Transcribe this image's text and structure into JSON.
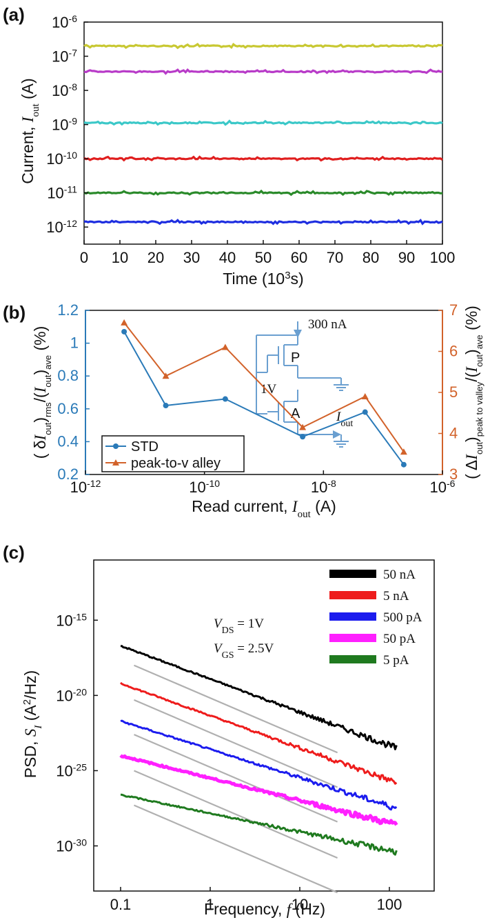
{
  "chart_data": [
    {
      "panel": "(a)",
      "type": "line",
      "ylabel_prefix": "Current, ",
      "ylabel_var": "I",
      "ylabel_sub": "out",
      "ylabel_unit": " (A)",
      "xlabel_text": "Time  (10",
      "xlabel_sup": "3",
      "xlabel_end": "s)",
      "x_ticks": [
        "0",
        "10",
        "20",
        "30",
        "40",
        "50",
        "60",
        "70",
        "80",
        "90",
        "100"
      ],
      "y_ticks": [
        "-6",
        "-7",
        "-8",
        "-9",
        "-10",
        "-11",
        "-12"
      ],
      "y_tick_base": "10",
      "xlim": [
        0,
        100
      ],
      "ylim_log10": [
        -12.5,
        -6
      ],
      "series": [
        {
          "color": "#c8c832",
          "log10_current": -6.7
        },
        {
          "color": "#b83bc8",
          "log10_current": -7.45
        },
        {
          "color": "#3bc8c8",
          "log10_current": -8.95
        },
        {
          "color": "#e01e1e",
          "log10_current": -10.0
        },
        {
          "color": "#2a8a2a",
          "log10_current": -11.0
        },
        {
          "color": "#1e2ee0",
          "log10_current": -11.85
        }
      ]
    },
    {
      "panel": "(b)",
      "type": "line",
      "xlabel_text": "Read current, ",
      "xlabel_var": "I",
      "xlabel_sub": "out",
      "xlabel_unit": " (A)",
      "x_tick_base": "10",
      "x_ticks": [
        "-12",
        "-10",
        "-8",
        "-6"
      ],
      "xlim_log10": [
        -12,
        -6
      ],
      "y_left_ticks": [
        "0.2",
        "0.4",
        "0.6",
        "0.8",
        "1",
        "1.2"
      ],
      "y_left_lim": [
        0.2,
        1.2
      ],
      "y_right_ticks": [
        "3",
        "4",
        "5",
        "6",
        "7"
      ],
      "y_right_lim": [
        3,
        7
      ],
      "ylabel_left_a": "( δ",
      "ylabel_left_b": "I",
      "ylabel_left_c": "out",
      "ylabel_left_d": ")",
      "ylabel_left_e": "rms",
      "ylabel_left_f": "/(",
      "ylabel_left_g": "I",
      "ylabel_left_h": "out",
      "ylabel_left_i": ")",
      "ylabel_left_j": "ave",
      "ylabel_left_k": " (%)",
      "ylabel_right_a": "( Δ",
      "ylabel_right_b": "I",
      "ylabel_right_c": "out",
      "ylabel_right_d": ")",
      "ylabel_right_e": "peak to valley",
      "ylabel_right_f": "/(",
      "ylabel_right_g": "I",
      "ylabel_right_h": "out",
      "ylabel_right_i": ")",
      "ylabel_right_j": "ave",
      "ylabel_right_k": " (%)",
      "left_color": "#2a7ab8",
      "right_color": "#d2622a",
      "series": [
        {
          "name": "STD",
          "axis": "left",
          "color": "#2a7ab8",
          "marker": "circle",
          "x_log10": [
            -11.35,
            -10.65,
            -9.65,
            -8.35,
            -7.3,
            -6.65
          ],
          "values": [
            1.07,
            0.62,
            0.66,
            0.43,
            0.58,
            0.26
          ]
        },
        {
          "name": "peak-to-v alley",
          "axis": "right",
          "color": "#d2622a",
          "marker": "triangle",
          "x_log10": [
            -11.35,
            -10.65,
            -9.65,
            -8.35,
            -7.3,
            -6.65
          ],
          "values": [
            6.7,
            5.4,
            6.1,
            4.15,
            4.9,
            3.55
          ]
        }
      ],
      "inset": {
        "current_label": "300 nA",
        "voltage_label": "1V",
        "p_label": "P",
        "a_label": "A",
        "out_var": "I",
        "out_sub": "out"
      }
    },
    {
      "panel": "(c)",
      "type": "line",
      "ylabel_prefix": "PSD, ",
      "ylabel_var": "S",
      "ylabel_sub": "I",
      "ylabel_unit_a": " (A",
      "ylabel_unit_sup": "2",
      "ylabel_unit_b": "/Hz)",
      "xlabel_text": "Frequency, ",
      "xlabel_var": "f",
      "xlabel_unit": " (Hz)",
      "x_ticks": [
        "0.1",
        "1",
        "10",
        "100"
      ],
      "xlim_log10": [
        -1.3,
        2.5
      ],
      "y_tick_base": "10",
      "y_ticks": [
        "-15",
        "-20",
        "-25",
        "-30"
      ],
      "ylim_log10": [
        -33,
        -11
      ],
      "annot_vds_var": "V",
      "annot_vds_sub": "DS",
      "annot_vds_val": " = 1V",
      "annot_vgs_var": "V",
      "annot_vgs_sub": "GS",
      "annot_vgs_val": " =  2.5V",
      "series": [
        {
          "name": "50 nA",
          "color": "#000000",
          "start": -16.7,
          "end": -23.5
        },
        {
          "name": "5 nA",
          "color": "#ee1c1c",
          "start": -19.2,
          "end": -25.8
        },
        {
          "name": "500 pA",
          "color": "#1c1cee",
          "start": -21.7,
          "end": -27.5
        },
        {
          "name": "50 pA",
          "color": "#ff20ff",
          "start": -24.0,
          "end": -28.6
        },
        {
          "name": "5 pA",
          "color": "#1f7a1f",
          "start": -26.6,
          "end": -30.4
        }
      ],
      "reference_lines": [
        {
          "start": -18.0,
          "end": -23.8
        },
        {
          "start": -20.3,
          "end": -26.1
        },
        {
          "start": -22.6,
          "end": -28.4
        },
        {
          "start": -25.0,
          "end": -30.8
        },
        {
          "start": -27.3,
          "end": -33.1
        }
      ]
    }
  ]
}
